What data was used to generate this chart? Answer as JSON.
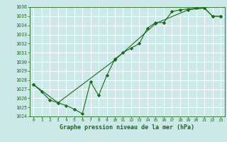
{
  "title": "Graphe pression niveau de la mer (hPa)",
  "xlabel_hours": [
    0,
    1,
    2,
    3,
    4,
    5,
    6,
    7,
    8,
    9,
    10,
    11,
    12,
    13,
    14,
    15,
    16,
    17,
    18,
    19,
    20,
    21,
    22,
    23
  ],
  "line1_x": [
    0,
    1,
    2,
    3,
    4,
    5,
    6,
    7,
    8,
    9,
    10,
    11,
    12,
    13,
    14,
    15,
    16,
    17,
    18,
    19,
    20,
    21,
    22,
    23
  ],
  "line1_y": [
    1027.5,
    1026.7,
    1025.8,
    1025.5,
    1025.2,
    1024.8,
    1024.3,
    1027.8,
    1026.3,
    1028.5,
    1030.3,
    1031.0,
    1031.5,
    1032.0,
    1033.7,
    1034.3,
    1034.3,
    1035.5,
    1035.7,
    1035.8,
    1035.9,
    1035.9,
    1035.0,
    1035.0
  ],
  "line2_x": [
    0,
    3,
    10,
    15,
    19,
    21,
    22,
    23
  ],
  "line2_y": [
    1027.5,
    1025.5,
    1030.2,
    1034.2,
    1035.7,
    1035.9,
    1035.0,
    1035.0
  ],
  "ylim": [
    1024,
    1036
  ],
  "yticks": [
    1024,
    1025,
    1026,
    1027,
    1028,
    1029,
    1030,
    1031,
    1032,
    1033,
    1034,
    1035,
    1036
  ],
  "line_color": "#1a6b1a",
  "bg_color": "#cce8e8",
  "grid_color": "#aacccc",
  "title_color": "#1a6b1a",
  "tick_color": "#1a6b1a",
  "marker": "D",
  "markersize": 2.2,
  "linewidth": 0.8
}
